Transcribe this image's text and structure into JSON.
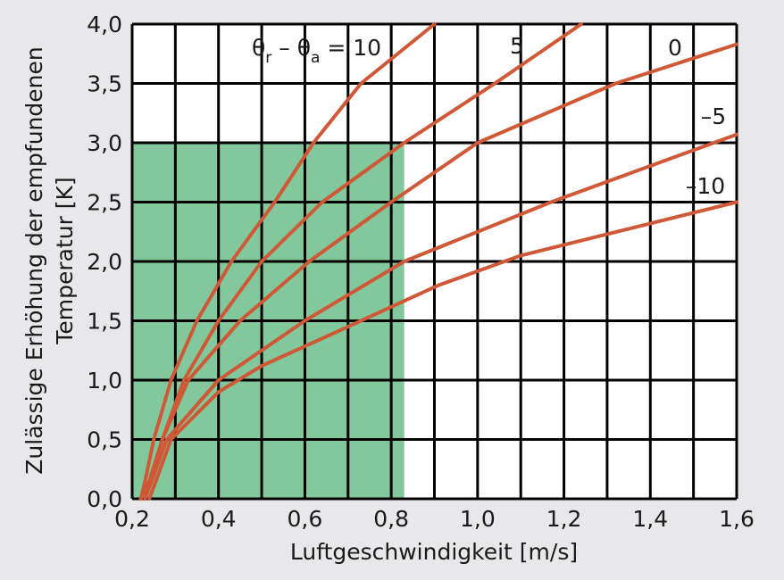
{
  "chart_data": {
    "type": "line",
    "xlabel": "Luftgeschwindigkeit [m/s]",
    "ylabel_line1": "Zulässige Erhöhung der empfundenen",
    "ylabel_line2": "Temperatur [K]",
    "xlim": [
      0.2,
      1.6
    ],
    "ylim": [
      0.0,
      4.0
    ],
    "x_ticks": [
      {
        "value": 0.2,
        "label": "0,2"
      },
      {
        "value": 0.4,
        "label": "0,4"
      },
      {
        "value": 0.6,
        "label": "0,6"
      },
      {
        "value": 0.8,
        "label": "0,8"
      },
      {
        "value": 1.0,
        "label": "1,0"
      },
      {
        "value": 1.2,
        "label": "1,2"
      },
      {
        "value": 1.4,
        "label": "1,4"
      },
      {
        "value": 1.6,
        "label": "1,6"
      }
    ],
    "y_ticks": [
      {
        "value": 0.0,
        "label": "0,0"
      },
      {
        "value": 0.5,
        "label": "0,5"
      },
      {
        "value": 1.0,
        "label": "1,0"
      },
      {
        "value": 1.5,
        "label": "1,5"
      },
      {
        "value": 2.0,
        "label": "2,0"
      },
      {
        "value": 2.5,
        "label": "2,5"
      },
      {
        "value": 3.0,
        "label": "3,0"
      },
      {
        "value": 3.5,
        "label": "3,5"
      },
      {
        "value": 4.0,
        "label": "4,0"
      }
    ],
    "grid": true,
    "highlight_region": {
      "x": [
        0.2,
        0.83
      ],
      "y": [
        0.0,
        3.0
      ],
      "color": "#82c89c"
    },
    "line_color": "#cf5836",
    "background_color": "#e8e8ea",
    "annotation": {
      "theta": "θ",
      "sub_r": "r",
      "dash": " – ",
      "sub_a": "a",
      "equals": " = "
    },
    "series": [
      {
        "label": "10",
        "points": [
          [
            0.22,
            0.0
          ],
          [
            0.23,
            0.15
          ],
          [
            0.25,
            0.5
          ],
          [
            0.29,
            1.0
          ],
          [
            0.35,
            1.5
          ],
          [
            0.43,
            2.0
          ],
          [
            0.53,
            2.5
          ],
          [
            0.62,
            3.0
          ],
          [
            0.73,
            3.5
          ],
          [
            0.9,
            4.0
          ]
        ]
      },
      {
        "label": "5",
        "points": [
          [
            0.22,
            0.0
          ],
          [
            0.24,
            0.15
          ],
          [
            0.27,
            0.5
          ],
          [
            0.32,
            1.0
          ],
          [
            0.4,
            1.5
          ],
          [
            0.5,
            2.0
          ],
          [
            0.64,
            2.5
          ],
          [
            0.83,
            3.0
          ],
          [
            1.04,
            3.5
          ],
          [
            1.24,
            4.0
          ]
        ]
      },
      {
        "label": "0",
        "points": [
          [
            0.22,
            0.0
          ],
          [
            0.24,
            0.15
          ],
          [
            0.27,
            0.5
          ],
          [
            0.33,
            1.0
          ],
          [
            0.45,
            1.5
          ],
          [
            0.61,
            2.0
          ],
          [
            0.8,
            2.5
          ],
          [
            1.0,
            3.0
          ],
          [
            1.32,
            3.5
          ],
          [
            1.6,
            3.83
          ]
        ]
      },
      {
        "label": "–5",
        "points": [
          [
            0.23,
            0.0
          ],
          [
            0.25,
            0.2
          ],
          [
            0.28,
            0.5
          ],
          [
            0.4,
            1.0
          ],
          [
            0.6,
            1.5
          ],
          [
            0.83,
            2.0
          ],
          [
            1.17,
            2.5
          ],
          [
            1.6,
            3.07
          ]
        ]
      },
      {
        "label": "–10",
        "points": [
          [
            0.24,
            0.0
          ],
          [
            0.26,
            0.2
          ],
          [
            0.29,
            0.5
          ],
          [
            0.4,
            0.9
          ],
          [
            0.5,
            1.12
          ],
          [
            0.7,
            1.45
          ],
          [
            0.91,
            1.8
          ],
          [
            1.1,
            2.05
          ],
          [
            1.6,
            2.5
          ]
        ]
      }
    ]
  }
}
